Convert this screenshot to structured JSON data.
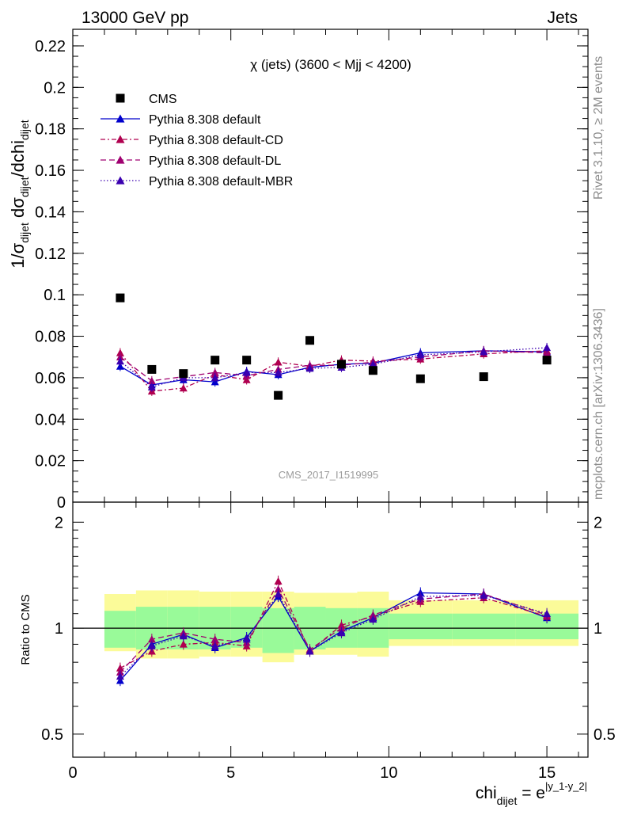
{
  "header": {
    "left": "13000 GeV pp",
    "right": "Jets"
  },
  "side_texts": {
    "top": "Rivet 3.1.10, ≥ 2M events",
    "bottom": "mcplots.cern.ch [arXiv:1306.3436]"
  },
  "watermark": "CMS_2017_I1519995",
  "colors": {
    "cms": "#000000",
    "default": "#0000cc",
    "cd": "#b0004f",
    "dl": "#9f0070",
    "mbr": "#3b00b0",
    "band_inner": "#99fa99",
    "band_outer": "#fbfb99"
  },
  "chart_data": [
    {
      "type": "scatter",
      "title": "χ (jets) (3600 < Mjj < 4200)",
      "ylabel": "1/σdijet dσdijet/dchidijet",
      "ylim": [
        0,
        0.228
      ],
      "xlim": [
        0,
        16.3
      ],
      "yticks": [
        "0",
        "0.02",
        "0.04",
        "0.06",
        "0.08",
        "0.1",
        "0.12",
        "0.14",
        "0.16",
        "0.18",
        "0.2",
        "0.22"
      ],
      "legend_position": "top-left",
      "bins": [
        [
          1,
          2
        ],
        [
          2,
          3
        ],
        [
          3,
          4
        ],
        [
          4,
          5
        ],
        [
          5,
          6
        ],
        [
          6,
          7
        ],
        [
          7,
          8
        ],
        [
          8,
          9
        ],
        [
          9,
          10
        ],
        [
          10,
          12
        ],
        [
          12,
          14
        ],
        [
          14,
          16
        ]
      ],
      "x": [
        1.5,
        2.5,
        3.5,
        4.5,
        5.5,
        6.5,
        7.5,
        8.5,
        9.5,
        11,
        13,
        15
      ],
      "series": [
        {
          "name": "CMS",
          "key": "cms",
          "values": [
            0.0985,
            0.064,
            0.062,
            0.0685,
            0.0685,
            0.0515,
            0.078,
            0.0665,
            0.0635,
            0.0595,
            0.0605,
            0.0685
          ]
        },
        {
          "name": "Pythia 8.308 default",
          "key": "default",
          "values": [
            0.0655,
            0.0565,
            0.059,
            0.058,
            0.063,
            0.0615,
            0.065,
            0.0665,
            0.067,
            0.072,
            0.073,
            0.0725
          ]
        },
        {
          "name": "Pythia 8.308 default-CD",
          "key": "cd",
          "values": [
            0.072,
            0.0535,
            0.055,
            0.0615,
            0.059,
            0.0675,
            0.0655,
            0.0685,
            0.068,
            0.069,
            0.0715,
            0.073
          ]
        },
        {
          "name": "Pythia 8.308 default-DL",
          "key": "dl",
          "values": [
            0.07,
            0.0585,
            0.0605,
            0.0625,
            0.061,
            0.064,
            0.066,
            0.066,
            0.0675,
            0.07,
            0.073,
            0.072
          ]
        },
        {
          "name": "Pythia 8.308 default-MBR",
          "key": "mbr",
          "values": [
            0.068,
            0.0555,
            0.06,
            0.06,
            0.0625,
            0.0625,
            0.0645,
            0.065,
            0.0665,
            0.071,
            0.0725,
            0.0745
          ]
        }
      ]
    },
    {
      "type": "line",
      "ylabel": "Ratio to CMS",
      "ylim": [
        0.43,
        2.28
      ],
      "xlim": [
        0,
        16.3
      ],
      "xlabel": "chidijet = e|y_1-y_2|",
      "xticks": [
        "0",
        "5",
        "10",
        "15"
      ],
      "yticks": [
        "0.5",
        "1",
        "2"
      ],
      "log_y": true,
      "reference_line": 1,
      "bands": {
        "inner": [
          [
            0.88,
            1.12
          ],
          [
            0.87,
            1.15
          ],
          [
            0.87,
            1.15
          ],
          [
            0.87,
            1.15
          ],
          [
            0.88,
            1.15
          ],
          [
            0.85,
            1.14
          ],
          [
            0.87,
            1.15
          ],
          [
            0.88,
            1.14
          ],
          [
            0.88,
            1.14
          ],
          [
            0.93,
            1.1
          ],
          [
            0.93,
            1.1
          ],
          [
            0.93,
            1.1
          ]
        ],
        "outer": [
          [
            0.86,
            1.25
          ],
          [
            0.82,
            1.28
          ],
          [
            0.82,
            1.28
          ],
          [
            0.83,
            1.27
          ],
          [
            0.83,
            1.27
          ],
          [
            0.8,
            1.27
          ],
          [
            0.84,
            1.26
          ],
          [
            0.84,
            1.26
          ],
          [
            0.83,
            1.27
          ],
          [
            0.89,
            1.2
          ],
          [
            0.89,
            1.2
          ],
          [
            0.89,
            1.2
          ]
        ]
      },
      "series": [
        {
          "name": "Pythia 8.308 default",
          "key": "default",
          "values": [
            0.71,
            0.9,
            0.96,
            0.88,
            0.94,
            1.23,
            0.86,
            0.98,
            1.07,
            1.26,
            1.25,
            1.07
          ]
        },
        {
          "name": "Pythia 8.308 default-CD",
          "key": "cd",
          "values": [
            0.77,
            0.86,
            0.9,
            0.91,
            0.89,
            1.36,
            0.86,
            1.02,
            1.08,
            1.19,
            1.22,
            1.08
          ]
        },
        {
          "name": "Pythia 8.308 default-DL",
          "key": "dl",
          "values": [
            0.75,
            0.93,
            0.97,
            0.93,
            0.91,
            1.29,
            0.87,
            1.0,
            1.09,
            1.21,
            1.25,
            1.09
          ]
        },
        {
          "name": "Pythia 8.308 default-MBR",
          "key": "mbr",
          "values": [
            0.73,
            0.89,
            0.95,
            0.89,
            0.93,
            1.25,
            0.86,
            0.97,
            1.06,
            1.23,
            1.24,
            1.1
          ]
        }
      ]
    }
  ]
}
